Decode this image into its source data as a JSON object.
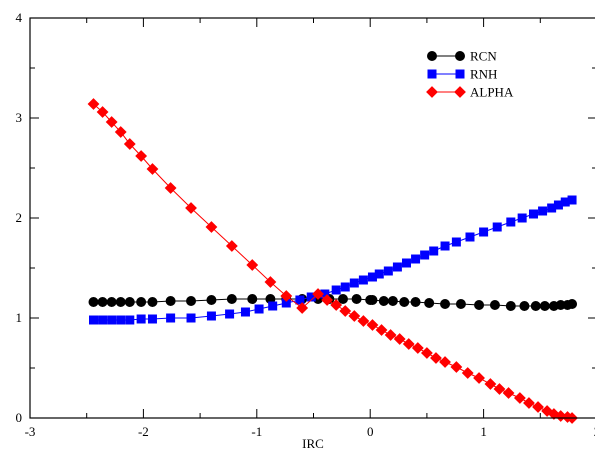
{
  "chart_data": {
    "type": "line",
    "title": "",
    "xlabel": "IRC",
    "ylabel": "",
    "xlim": [
      -3,
      2
    ],
    "ylim": [
      0,
      4
    ],
    "x_ticks": [
      -3,
      -2,
      -1,
      0,
      1,
      2
    ],
    "y_ticks": [
      0,
      1,
      2,
      3,
      4
    ],
    "x_tick_labels": [
      "-3",
      "-2",
      "-1",
      "0",
      "1",
      "2"
    ],
    "y_tick_labels": [
      "0",
      "1",
      "2",
      "3",
      "4"
    ],
    "grid": false,
    "legend_position": "top-right",
    "series": [
      {
        "name": "RCN",
        "color": "#000000",
        "marker": "circle",
        "x": [
          -2.44,
          -2.36,
          -2.28,
          -2.2,
          -2.12,
          -2.02,
          -1.92,
          -1.76,
          -1.58,
          -1.4,
          -1.22,
          -1.04,
          -0.88,
          -0.74,
          -0.6,
          -0.46,
          -0.36,
          -0.24,
          -0.12,
          0.0,
          0.02,
          0.12,
          0.2,
          0.3,
          0.4,
          0.52,
          0.66,
          0.8,
          0.96,
          1.1,
          1.24,
          1.36,
          1.46,
          1.54,
          1.62,
          1.68,
          1.74,
          1.78
        ],
        "y": [
          1.16,
          1.16,
          1.16,
          1.16,
          1.16,
          1.16,
          1.16,
          1.17,
          1.17,
          1.18,
          1.19,
          1.19,
          1.19,
          1.19,
          1.19,
          1.19,
          1.19,
          1.19,
          1.19,
          1.18,
          1.18,
          1.17,
          1.17,
          1.16,
          1.16,
          1.15,
          1.14,
          1.14,
          1.13,
          1.13,
          1.12,
          1.12,
          1.12,
          1.12,
          1.12,
          1.13,
          1.13,
          1.14
        ]
      },
      {
        "name": "RNH",
        "color": "#0000ff",
        "marker": "square",
        "x": [
          -2.44,
          -2.36,
          -2.28,
          -2.2,
          -2.12,
          -2.02,
          -1.92,
          -1.76,
          -1.58,
          -1.4,
          -1.24,
          -1.1,
          -0.98,
          -0.86,
          -0.74,
          -0.62,
          -0.52,
          -0.4,
          -0.3,
          -0.22,
          -0.14,
          -0.06,
          0.02,
          0.08,
          0.16,
          0.24,
          0.32,
          0.4,
          0.48,
          0.56,
          0.66,
          0.76,
          0.88,
          1.0,
          1.12,
          1.24,
          1.34,
          1.44,
          1.52,
          1.6,
          1.66,
          1.72,
          1.78
        ],
        "y": [
          0.98,
          0.98,
          0.98,
          0.98,
          0.98,
          0.99,
          0.99,
          1.0,
          1.0,
          1.02,
          1.04,
          1.06,
          1.09,
          1.12,
          1.15,
          1.18,
          1.21,
          1.24,
          1.28,
          1.31,
          1.35,
          1.38,
          1.41,
          1.44,
          1.47,
          1.51,
          1.55,
          1.59,
          1.63,
          1.67,
          1.72,
          1.76,
          1.81,
          1.86,
          1.91,
          1.96,
          2.0,
          2.04,
          2.07,
          2.1,
          2.13,
          2.16,
          2.18
        ]
      },
      {
        "name": "ALPHA",
        "color": "#ff0000",
        "marker": "diamond",
        "x": [
          -2.44,
          -2.36,
          -2.28,
          -2.2,
          -2.12,
          -2.02,
          -1.92,
          -1.76,
          -1.58,
          -1.4,
          -1.22,
          -1.04,
          -0.88,
          -0.74,
          -0.6,
          -0.46,
          -0.38,
          -0.3,
          -0.22,
          -0.14,
          -0.06,
          0.02,
          0.1,
          0.18,
          0.26,
          0.34,
          0.42,
          0.5,
          0.58,
          0.66,
          0.76,
          0.86,
          0.96,
          1.06,
          1.14,
          1.22,
          1.32,
          1.4,
          1.48,
          1.56,
          1.62,
          1.68,
          1.74,
          1.78
        ],
        "y": [
          3.14,
          3.06,
          2.96,
          2.86,
          2.74,
          2.62,
          2.49,
          2.3,
          2.1,
          1.91,
          1.72,
          1.53,
          1.36,
          1.22,
          1.1,
          1.24,
          1.18,
          1.13,
          1.07,
          1.02,
          0.97,
          0.93,
          0.88,
          0.83,
          0.79,
          0.74,
          0.7,
          0.65,
          0.6,
          0.56,
          0.51,
          0.45,
          0.4,
          0.34,
          0.29,
          0.25,
          0.2,
          0.15,
          0.11,
          0.07,
          0.04,
          0.02,
          0.01,
          0.0
        ]
      }
    ]
  }
}
